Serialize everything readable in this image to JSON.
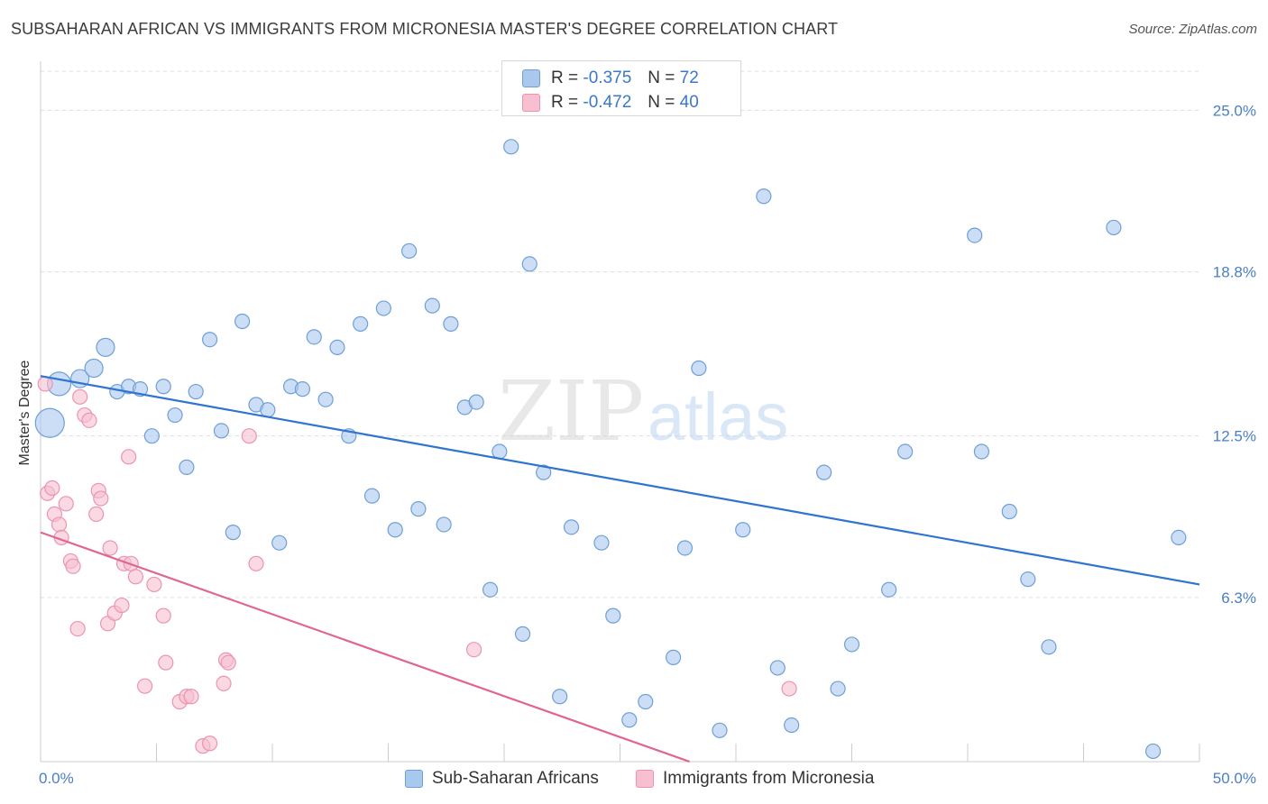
{
  "title": "SUBSAHARAN AFRICAN VS IMMIGRANTS FROM MICRONESIA MASTER'S DEGREE CORRELATION CHART",
  "source": "Source: ZipAtlas.com",
  "watermark": {
    "zip": "ZIP",
    "atlas": "atlas"
  },
  "legend": {
    "r_label": "R =",
    "n_label": "N =",
    "series1": {
      "r": "-0.375",
      "n": "72"
    },
    "series2": {
      "r": "-0.472",
      "n": "40"
    }
  },
  "bottom_legend": {
    "series1": "Sub-Saharan Africans",
    "series2": "Immigrants from Micronesia"
  },
  "colors": {
    "blue_fill": "#a9c8ee",
    "blue_stroke": "#6f9fd8",
    "blue_line": "#2f74d0",
    "pink_fill": "#f7bfd0",
    "pink_stroke": "#eb94b1",
    "pink_line": "#e06690",
    "tick_text": "#4a7fc8",
    "grid": "#dddddd"
  },
  "chart_data": {
    "type": "scatter",
    "title": "SUBSAHARAN AFRICAN VS IMMIGRANTS FROM MICRONESIA MASTER'S DEGREE CORRELATION CHART",
    "xlabel": "",
    "ylabel": "Master's Degree",
    "xlim": [
      0,
      50
    ],
    "ylim": [
      0,
      26.5
    ],
    "x_tick_labels": [
      "0.0%",
      "50.0%"
    ],
    "y_ticks": [
      6.3,
      12.5,
      18.8,
      25.0
    ],
    "y_tick_labels": [
      "6.3%",
      "12.5%",
      "18.8%",
      "25.0%"
    ],
    "grid": "horizontal dashed",
    "legend_position": "top-center",
    "series": [
      {
        "name": "Sub-Saharan Africans",
        "color": "#a9c8ee",
        "trend": {
          "x": [
            0,
            50
          ],
          "y": [
            14.8,
            6.8
          ]
        },
        "points": [
          [
            0.4,
            13.0,
            32
          ],
          [
            0.8,
            14.5,
            26
          ],
          [
            1.7,
            14.7,
            20
          ],
          [
            2.3,
            15.1,
            20
          ],
          [
            2.8,
            15.9,
            20
          ],
          [
            3.3,
            14.2,
            16
          ],
          [
            3.8,
            14.4,
            16
          ],
          [
            4.3,
            14.3,
            16
          ],
          [
            4.8,
            12.5,
            16
          ],
          [
            5.3,
            14.4,
            16
          ],
          [
            5.8,
            13.3,
            16
          ],
          [
            6.3,
            11.3,
            16
          ],
          [
            6.7,
            14.2,
            16
          ],
          [
            7.3,
            16.2,
            16
          ],
          [
            7.8,
            12.7,
            16
          ],
          [
            8.3,
            8.8,
            16
          ],
          [
            8.7,
            16.9,
            16
          ],
          [
            9.3,
            13.7,
            16
          ],
          [
            9.8,
            13.5,
            16
          ],
          [
            10.3,
            8.4,
            16
          ],
          [
            10.8,
            14.4,
            16
          ],
          [
            11.3,
            14.3,
            16
          ],
          [
            11.8,
            16.3,
            16
          ],
          [
            12.3,
            13.9,
            16
          ],
          [
            12.8,
            15.9,
            16
          ],
          [
            13.3,
            12.5,
            16
          ],
          [
            13.8,
            16.8,
            16
          ],
          [
            14.3,
            10.2,
            16
          ],
          [
            14.8,
            17.4,
            16
          ],
          [
            15.3,
            8.9,
            16
          ],
          [
            15.9,
            19.6,
            16
          ],
          [
            16.3,
            9.7,
            16
          ],
          [
            16.9,
            17.5,
            16
          ],
          [
            17.4,
            9.1,
            16
          ],
          [
            17.7,
            16.8,
            16
          ],
          [
            18.3,
            13.6,
            16
          ],
          [
            18.8,
            13.8,
            16
          ],
          [
            19.4,
            6.6,
            16
          ],
          [
            19.8,
            11.9,
            16
          ],
          [
            20.3,
            23.6,
            16
          ],
          [
            20.8,
            4.9,
            16
          ],
          [
            21.1,
            19.1,
            16
          ],
          [
            21.7,
            11.1,
            16
          ],
          [
            22.4,
            2.5,
            16
          ],
          [
            22.9,
            9.0,
            16
          ],
          [
            24.2,
            8.4,
            16
          ],
          [
            24.7,
            5.6,
            16
          ],
          [
            25.4,
            1.6,
            16
          ],
          [
            26.1,
            2.3,
            16
          ],
          [
            27.3,
            4.0,
            16
          ],
          [
            27.8,
            8.2,
            16
          ],
          [
            28.4,
            15.1,
            16
          ],
          [
            29.3,
            1.2,
            16
          ],
          [
            30.3,
            8.9,
            16
          ],
          [
            31.2,
            21.7,
            16
          ],
          [
            31.8,
            3.6,
            16
          ],
          [
            32.4,
            1.4,
            16
          ],
          [
            33.8,
            11.1,
            16
          ],
          [
            34.4,
            2.8,
            16
          ],
          [
            35.0,
            4.5,
            16
          ],
          [
            36.6,
            6.6,
            16
          ],
          [
            37.3,
            11.9,
            16
          ],
          [
            40.3,
            20.2,
            16
          ],
          [
            40.6,
            11.9,
            16
          ],
          [
            41.8,
            9.6,
            16
          ],
          [
            42.6,
            7.0,
            16
          ],
          [
            43.5,
            4.4,
            16
          ],
          [
            46.3,
            20.5,
            16
          ],
          [
            48.0,
            0.4,
            16
          ],
          [
            49.1,
            8.6,
            16
          ],
          [
            19.5,
            13.4,
            0
          ],
          [
            27.0,
            11.0,
            0
          ]
        ]
      },
      {
        "name": "Immigrants from Micronesia",
        "color": "#f7bfd0",
        "trend": {
          "x": [
            0,
            28.0
          ],
          "y": [
            8.8,
            0
          ]
        },
        "points": [
          [
            0.2,
            14.5,
            16
          ],
          [
            0.3,
            10.3,
            16
          ],
          [
            0.5,
            10.5,
            16
          ],
          [
            0.6,
            9.5,
            16
          ],
          [
            0.8,
            9.1,
            16
          ],
          [
            0.9,
            8.6,
            16
          ],
          [
            1.1,
            9.9,
            16
          ],
          [
            1.3,
            7.7,
            16
          ],
          [
            1.4,
            7.5,
            16
          ],
          [
            1.6,
            5.1,
            16
          ],
          [
            1.7,
            14.0,
            16
          ],
          [
            1.9,
            13.3,
            16
          ],
          [
            2.1,
            13.1,
            16
          ],
          [
            2.4,
            9.5,
            16
          ],
          [
            2.5,
            10.4,
            16
          ],
          [
            2.6,
            10.1,
            16
          ],
          [
            2.9,
            5.3,
            16
          ],
          [
            3.0,
            8.2,
            16
          ],
          [
            3.2,
            5.7,
            16
          ],
          [
            3.5,
            6.0,
            16
          ],
          [
            3.6,
            7.6,
            16
          ],
          [
            3.8,
            11.7,
            16
          ],
          [
            3.9,
            7.6,
            16
          ],
          [
            4.1,
            7.1,
            16
          ],
          [
            4.5,
            2.9,
            16
          ],
          [
            4.9,
            6.8,
            16
          ],
          [
            5.3,
            5.6,
            16
          ],
          [
            5.4,
            3.8,
            16
          ],
          [
            6.0,
            2.3,
            16
          ],
          [
            6.3,
            2.5,
            16
          ],
          [
            6.5,
            2.5,
            16
          ],
          [
            7.0,
            0.6,
            16
          ],
          [
            7.3,
            0.7,
            16
          ],
          [
            7.9,
            3.0,
            16
          ],
          [
            8.0,
            3.9,
            16
          ],
          [
            8.1,
            3.8,
            16
          ],
          [
            9.0,
            12.5,
            16
          ],
          [
            9.3,
            7.6,
            16
          ],
          [
            18.7,
            4.3,
            16
          ],
          [
            32.3,
            2.8,
            16
          ]
        ]
      }
    ]
  }
}
